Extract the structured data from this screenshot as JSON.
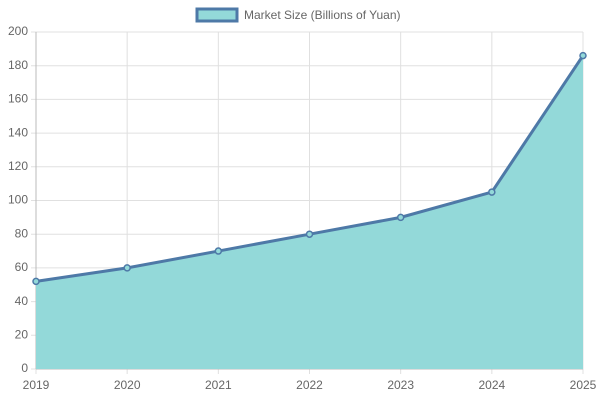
{
  "chart_data": {
    "type": "area",
    "categories": [
      "2019",
      "2020",
      "2021",
      "2022",
      "2023",
      "2024",
      "2025"
    ],
    "series": [
      {
        "name": "Market Size (Billions of Yuan)",
        "color": "#4e79a7",
        "fill_color": "#93d9d9",
        "values": [
          52,
          60,
          70,
          80,
          90,
          105,
          186
        ]
      }
    ],
    "ylim": [
      0,
      200
    ],
    "yticks": [
      0,
      20,
      40,
      60,
      80,
      100,
      120,
      140,
      160,
      180,
      200
    ],
    "grid": true,
    "legend": "top"
  }
}
